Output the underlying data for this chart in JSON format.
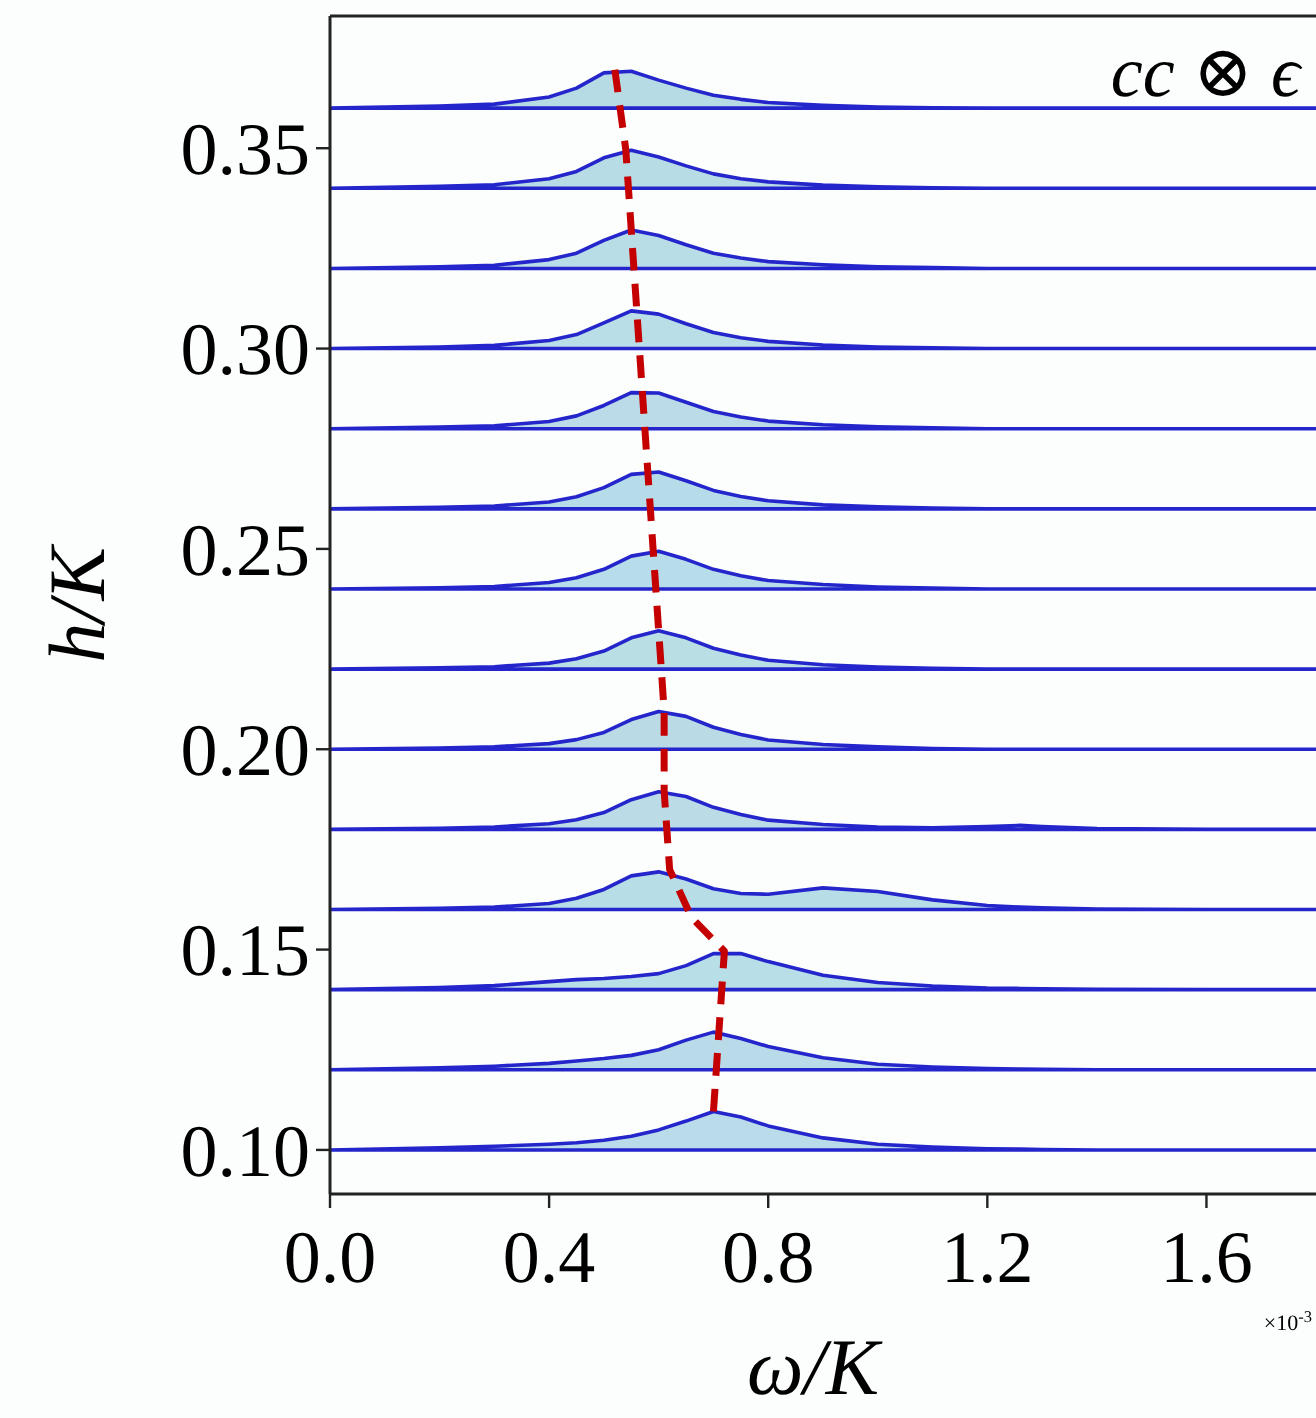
{
  "chart_data": {
    "type": "area",
    "xlabel": "ω/K",
    "ylabel": "h/K",
    "annotations": [
      "cc ⊗ ϵ",
      "×10$^{-3}$"
    ],
    "xlim": [
      0,
      1.8
    ],
    "ylim": [
      0.089,
      0.383
    ],
    "xticks": [
      {
        "value": 0,
        "label": "0.0"
      },
      0.4,
      0.8,
      1.2,
      1.6
    ],
    "yticks": [
      {
        "value": 0.1,
        "label": "0.10"
      },
      0.15,
      {
        "value": 0.2,
        "label": "0.20"
      },
      0.25,
      {
        "value": 0.3,
        "label": "0.30"
      },
      0.35
    ],
    "grid": false,
    "stacked": false,
    "series": [
      {
        "color": "#2525cc",
        "x": [
          0,
          0.2,
          0.3,
          0.4,
          0.45,
          0.5,
          0.55,
          0.6,
          0.65,
          0.7,
          0.75,
          0.8,
          0.9,
          1.0,
          1.1,
          1.2,
          1.26,
          1.3,
          1.4,
          1.6,
          1.8
        ],
        "values": [
          0.36,
          0.3605,
          0.361,
          0.3628,
          0.365,
          0.3688,
          0.3692,
          0.367,
          0.365,
          0.3632,
          0.3622,
          0.3614,
          0.3607,
          0.3603,
          0.3601,
          0.36,
          0.36,
          0.36,
          0.36,
          0.36,
          0.36
        ]
      },
      {
        "color": "#2525cc",
        "x": [
          0,
          0.2,
          0.3,
          0.4,
          0.45,
          0.5,
          0.55,
          0.6,
          0.65,
          0.7,
          0.75,
          0.8,
          0.9,
          1.0,
          1.1,
          1.2,
          1.26,
          1.3,
          1.4,
          1.6,
          1.8
        ],
        "values": [
          0.34,
          0.3405,
          0.3409,
          0.3424,
          0.3442,
          0.3476,
          0.3495,
          0.3478,
          0.3456,
          0.3436,
          0.3424,
          0.3416,
          0.3408,
          0.3404,
          0.3401,
          0.34,
          0.34,
          0.34,
          0.34,
          0.34,
          0.34
        ]
      },
      {
        "color": "#2525cc",
        "x": [
          0,
          0.2,
          0.3,
          0.4,
          0.45,
          0.5,
          0.55,
          0.6,
          0.65,
          0.7,
          0.75,
          0.8,
          0.9,
          1.0,
          1.1,
          1.2,
          1.26,
          1.3,
          1.4,
          1.6,
          1.8
        ],
        "values": [
          0.32,
          0.3204,
          0.3208,
          0.3222,
          0.3238,
          0.327,
          0.3296,
          0.3282,
          0.3259,
          0.3238,
          0.3226,
          0.3217,
          0.3209,
          0.3204,
          0.3202,
          0.32,
          0.32,
          0.32,
          0.32,
          0.32,
          0.32
        ]
      },
      {
        "color": "#2525cc",
        "x": [
          0,
          0.2,
          0.3,
          0.4,
          0.45,
          0.5,
          0.55,
          0.6,
          0.65,
          0.7,
          0.75,
          0.8,
          0.9,
          1.0,
          1.1,
          1.2,
          1.26,
          1.3,
          1.4,
          1.6,
          1.8
        ],
        "values": [
          0.3,
          0.3004,
          0.3008,
          0.302,
          0.3035,
          0.3064,
          0.3094,
          0.3086,
          0.3062,
          0.304,
          0.3027,
          0.3018,
          0.3009,
          0.3004,
          0.3002,
          0.3,
          0.3,
          0.3,
          0.3,
          0.3,
          0.3
        ]
      },
      {
        "color": "#2525cc",
        "x": [
          0,
          0.2,
          0.3,
          0.4,
          0.45,
          0.5,
          0.55,
          0.6,
          0.65,
          0.7,
          0.75,
          0.8,
          0.9,
          1.0,
          1.1,
          1.2,
          1.26,
          1.3,
          1.4,
          1.6,
          1.8
        ],
        "values": [
          0.28,
          0.2804,
          0.2807,
          0.2818,
          0.2832,
          0.2858,
          0.289,
          0.2889,
          0.2866,
          0.2843,
          0.2829,
          0.2819,
          0.281,
          0.2805,
          0.2802,
          0.28,
          0.28,
          0.28,
          0.28,
          0.28,
          0.28
        ]
      },
      {
        "color": "#2525cc",
        "x": [
          0,
          0.2,
          0.3,
          0.4,
          0.45,
          0.5,
          0.55,
          0.6,
          0.65,
          0.7,
          0.75,
          0.8,
          0.9,
          1.0,
          1.1,
          1.2,
          1.26,
          1.3,
          1.4,
          1.6,
          1.8
        ],
        "values": [
          0.26,
          0.2604,
          0.2607,
          0.2617,
          0.263,
          0.2653,
          0.2686,
          0.2692,
          0.267,
          0.2646,
          0.2631,
          0.262,
          0.261,
          0.2605,
          0.2602,
          0.26,
          0.26,
          0.26,
          0.26,
          0.26,
          0.26
        ]
      },
      {
        "color": "#2525cc",
        "x": [
          0,
          0.2,
          0.3,
          0.4,
          0.45,
          0.5,
          0.55,
          0.6,
          0.65,
          0.7,
          0.75,
          0.8,
          0.9,
          1.0,
          1.1,
          1.2,
          1.26,
          1.3,
          1.4,
          1.6,
          1.8
        ],
        "values": [
          0.24,
          0.2403,
          0.2406,
          0.2416,
          0.2428,
          0.2449,
          0.2482,
          0.2494,
          0.2474,
          0.2449,
          0.2433,
          0.2421,
          0.2411,
          0.2405,
          0.2402,
          0.24,
          0.24,
          0.24,
          0.24,
          0.24,
          0.24
        ]
      },
      {
        "color": "#2525cc",
        "x": [
          0,
          0.2,
          0.3,
          0.4,
          0.45,
          0.5,
          0.55,
          0.6,
          0.65,
          0.7,
          0.75,
          0.8,
          0.9,
          1.0,
          1.1,
          1.2,
          1.26,
          1.3,
          1.4,
          1.6,
          1.8
        ],
        "values": [
          0.22,
          0.2203,
          0.2206,
          0.2215,
          0.2226,
          0.2245,
          0.2278,
          0.2296,
          0.2278,
          0.2252,
          0.2235,
          0.2222,
          0.2211,
          0.2205,
          0.2202,
          0.22,
          0.22,
          0.22,
          0.22,
          0.22,
          0.22
        ]
      },
      {
        "color": "#2525cc",
        "x": [
          0,
          0.2,
          0.3,
          0.4,
          0.45,
          0.5,
          0.55,
          0.6,
          0.65,
          0.7,
          0.75,
          0.8,
          0.9,
          1.0,
          1.1,
          1.2,
          1.26,
          1.3,
          1.4,
          1.6,
          1.8
        ],
        "values": [
          0.2,
          0.2003,
          0.2006,
          0.2014,
          0.2024,
          0.2042,
          0.2074,
          0.2094,
          0.2082,
          0.2055,
          0.2037,
          0.2023,
          0.2012,
          0.2006,
          0.2002,
          0.2,
          0.2,
          0.2,
          0.2,
          0.2,
          0.2
        ]
      },
      {
        "color": "#2525cc",
        "x": [
          0,
          0.2,
          0.3,
          0.4,
          0.45,
          0.5,
          0.55,
          0.6,
          0.65,
          0.7,
          0.75,
          0.8,
          0.9,
          1.0,
          1.1,
          1.2,
          1.26,
          1.3,
          1.4,
          1.6,
          1.8
        ],
        "values": [
          0.18,
          0.1803,
          0.1806,
          0.1814,
          0.1824,
          0.1842,
          0.1874,
          0.1894,
          0.1882,
          0.1855,
          0.1837,
          0.1823,
          0.1812,
          0.1806,
          0.1804,
          0.1807,
          0.181,
          0.1807,
          0.1802,
          0.18,
          0.18
        ]
      },
      {
        "color": "#2525cc",
        "x": [
          0,
          0.2,
          0.3,
          0.4,
          0.45,
          0.5,
          0.55,
          0.6,
          0.65,
          0.7,
          0.75,
          0.8,
          0.9,
          1.0,
          1.1,
          1.2,
          1.26,
          1.3,
          1.4,
          1.6,
          1.8
        ],
        "values": [
          0.16,
          0.1603,
          0.1606,
          0.1615,
          0.1628,
          0.165,
          0.1684,
          0.1694,
          0.1676,
          0.1652,
          0.164,
          0.1638,
          0.1654,
          0.1645,
          0.1624,
          0.161,
          0.1606,
          0.1604,
          0.1601,
          0.16,
          0.16
        ]
      },
      {
        "color": "#2525cc",
        "x": [
          0,
          0.2,
          0.3,
          0.4,
          0.45,
          0.5,
          0.55,
          0.6,
          0.65,
          0.7,
          0.75,
          0.8,
          0.9,
          1.0,
          1.1,
          1.2,
          1.26,
          1.3,
          1.4,
          1.6,
          1.8
        ],
        "values": [
          0.14,
          0.1405,
          0.141,
          0.142,
          0.1425,
          0.1428,
          0.1433,
          0.144,
          0.146,
          0.149,
          0.149,
          0.147,
          0.1436,
          0.1418,
          0.1409,
          0.1404,
          0.1403,
          0.1402,
          0.1401,
          0.14,
          0.14
        ]
      },
      {
        "color": "#2525cc",
        "x": [
          0,
          0.2,
          0.3,
          0.4,
          0.45,
          0.5,
          0.55,
          0.6,
          0.65,
          0.7,
          0.75,
          0.8,
          0.9,
          1.0,
          1.1,
          1.2,
          1.26,
          1.3,
          1.4,
          1.6,
          1.8
        ],
        "values": [
          0.12,
          0.1205,
          0.1209,
          0.1216,
          0.1222,
          0.1228,
          0.1236,
          0.125,
          0.1274,
          0.1294,
          0.1278,
          0.1258,
          0.123,
          0.1214,
          0.1207,
          0.1203,
          0.1202,
          0.1201,
          0.12,
          0.12,
          0.12
        ]
      },
      {
        "color": "#2525cc",
        "x": [
          0,
          0.2,
          0.3,
          0.4,
          0.45,
          0.5,
          0.55,
          0.6,
          0.65,
          0.7,
          0.75,
          0.8,
          0.9,
          1.0,
          1.1,
          1.2,
          1.26,
          1.3,
          1.4,
          1.6,
          1.8
        ],
        "values": [
          0.1,
          0.1005,
          0.1009,
          0.1014,
          0.1018,
          0.1024,
          0.1034,
          0.105,
          0.1072,
          0.1096,
          0.1082,
          0.106,
          0.103,
          0.1014,
          0.1007,
          0.1003,
          0.1002,
          0.1001,
          0.1,
          0.1,
          0.1
        ]
      },
      {
        "type": "line",
        "color": "#c40000",
        "line_style": "dashed",
        "x": [
          0.52,
          0.54,
          0.55,
          0.56,
          0.57,
          0.58,
          0.59,
          0.6,
          0.61,
          0.61,
          0.62,
          0.66,
          0.72,
          0.71,
          0.7
        ],
        "values": [
          0.3696,
          0.3496,
          0.3296,
          0.3096,
          0.2896,
          0.2696,
          0.2496,
          0.2296,
          0.2096,
          0.1896,
          0.17,
          0.158,
          0.1496,
          0.1296,
          0.1096
        ]
      }
    ]
  }
}
